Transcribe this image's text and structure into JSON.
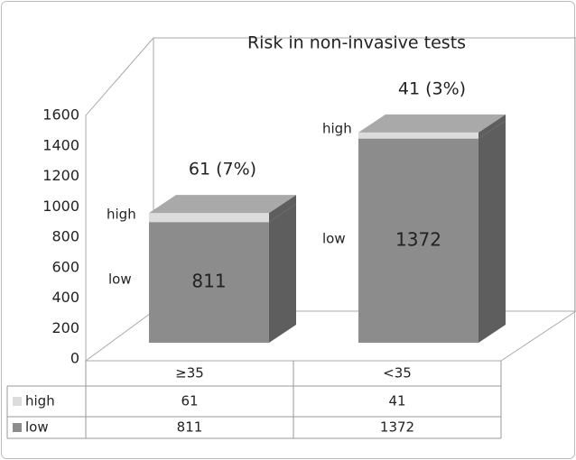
{
  "chart_data": {
    "type": "bar3d_stacked",
    "title": "Risk in non-invasive tests",
    "categories": [
      "≥35",
      "<35"
    ],
    "series": [
      {
        "name": "low",
        "color": "#8c8c8c",
        "values": [
          811,
          1372
        ]
      },
      {
        "name": "high",
        "color": "#dcdcdc",
        "values": [
          61,
          41
        ],
        "value_labels": [
          "61 (7%)",
          "41 (3%)"
        ]
      }
    ],
    "ylim": [
      0,
      1600
    ],
    "yticks": [
      0,
      200,
      400,
      600,
      800,
      1000,
      1200,
      1400,
      1600
    ]
  }
}
